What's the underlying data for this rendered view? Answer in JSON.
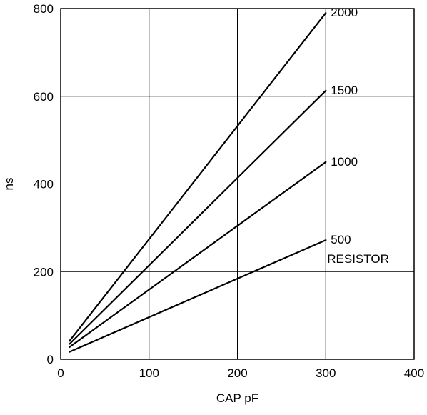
{
  "chart_data": {
    "type": "line",
    "title": "",
    "xlabel": "CAP pF",
    "ylabel": "ns",
    "xlim": [
      0,
      400
    ],
    "ylim": [
      0,
      800
    ],
    "x_ticks": [
      0,
      100,
      200,
      300,
      400
    ],
    "y_ticks": [
      0,
      200,
      400,
      600,
      800
    ],
    "x_tick_labels": [
      "0",
      "100",
      "200",
      "300",
      "400"
    ],
    "y_tick_labels": [
      "0",
      "200",
      "400",
      "600",
      "800"
    ],
    "grid": true,
    "series": [
      {
        "name": "2000",
        "x": [
          10,
          300
        ],
        "y": [
          42,
          790
        ]
      },
      {
        "name": "1500",
        "x": [
          10,
          300
        ],
        "y": [
          35,
          613
        ]
      },
      {
        "name": "1000",
        "x": [
          10,
          300
        ],
        "y": [
          28,
          450
        ]
      },
      {
        "name": "500",
        "x": [
          10,
          300
        ],
        "y": [
          17,
          272
        ]
      }
    ],
    "annotations": [
      {
        "text": "RESISTOR",
        "x": 300,
        "y": 230
      }
    ]
  }
}
